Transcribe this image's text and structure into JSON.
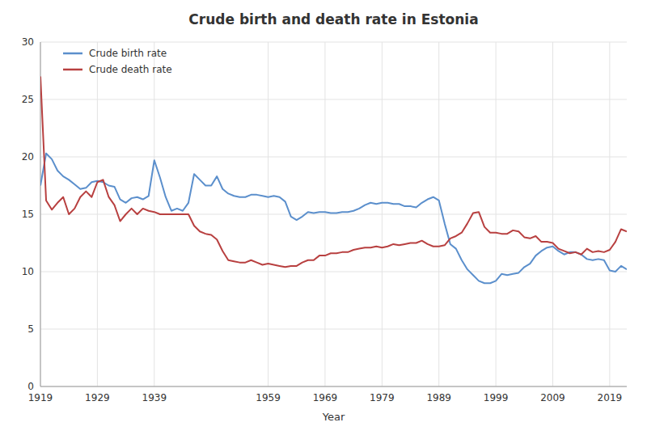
{
  "chart_data": {
    "type": "line",
    "title": "Crude birth and death rate in Estonia",
    "xlabel": "Year",
    "x": [
      1919,
      1920,
      1921,
      1922,
      1923,
      1924,
      1925,
      1926,
      1927,
      1928,
      1929,
      1930,
      1931,
      1932,
      1933,
      1934,
      1935,
      1936,
      1937,
      1938,
      1939,
      1940,
      1941,
      1942,
      1943,
      1944,
      1945,
      1946,
      1947,
      1948,
      1949,
      1950,
      1951,
      1952,
      1953,
      1954,
      1955,
      1956,
      1957,
      1958,
      1959,
      1960,
      1961,
      1962,
      1963,
      1964,
      1965,
      1966,
      1967,
      1968,
      1969,
      1970,
      1971,
      1972,
      1973,
      1974,
      1975,
      1976,
      1977,
      1978,
      1979,
      1980,
      1981,
      1982,
      1983,
      1984,
      1985,
      1986,
      1987,
      1988,
      1989,
      1990,
      1991,
      1992,
      1993,
      1994,
      1995,
      1996,
      1997,
      1998,
      1999,
      2000,
      2001,
      2002,
      2003,
      2004,
      2005,
      2006,
      2007,
      2008,
      2009,
      2010,
      2011,
      2012,
      2013,
      2014,
      2015,
      2016,
      2017,
      2018,
      2019,
      2020,
      2021,
      2022
    ],
    "series": [
      {
        "name": "Crude birth rate",
        "color": "#5b8fcc",
        "values": [
          17.5,
          20.3,
          19.8,
          18.8,
          18.3,
          18.0,
          17.6,
          17.2,
          17.3,
          17.8,
          17.9,
          17.8,
          17.5,
          17.4,
          16.3,
          16.0,
          16.4,
          16.5,
          16.3,
          16.6,
          19.7,
          18.2,
          16.5,
          15.3,
          15.5,
          15.3,
          16.0,
          18.5,
          18.0,
          17.5,
          17.5,
          18.3,
          17.2,
          16.8,
          16.6,
          16.5,
          16.5,
          16.7,
          16.7,
          16.6,
          16.5,
          16.6,
          16.5,
          16.1,
          14.8,
          14.5,
          14.8,
          15.2,
          15.1,
          15.2,
          15.2,
          15.1,
          15.1,
          15.2,
          15.2,
          15.3,
          15.5,
          15.8,
          16.0,
          15.9,
          16.0,
          16.0,
          15.9,
          15.9,
          15.7,
          15.7,
          15.6,
          16.0,
          16.3,
          16.5,
          16.2,
          14.2,
          12.4,
          12.0,
          11.0,
          10.2,
          9.7,
          9.2,
          9.0,
          9.0,
          9.2,
          9.8,
          9.7,
          9.8,
          9.9,
          10.4,
          10.7,
          11.4,
          11.8,
          12.1,
          12.2,
          11.8,
          11.5,
          11.7,
          11.7,
          11.5,
          11.1,
          11.0,
          11.1,
          11.0,
          10.1,
          10.0,
          10.5,
          10.2
        ]
      },
      {
        "name": "Crude death rate",
        "color": "#b84040",
        "values": [
          27.0,
          16.2,
          15.4,
          16.0,
          16.5,
          15.0,
          15.5,
          16.5,
          17.0,
          16.5,
          17.8,
          18.0,
          16.5,
          15.8,
          14.4,
          15.0,
          15.5,
          15.0,
          15.5,
          15.3,
          15.2,
          15.0,
          15.0,
          15.0,
          15.0,
          15.0,
          15.0,
          14.0,
          13.5,
          13.3,
          13.2,
          12.8,
          11.8,
          11.0,
          10.9,
          10.8,
          10.8,
          11.0,
          10.8,
          10.6,
          10.7,
          10.6,
          10.5,
          10.4,
          10.5,
          10.5,
          10.8,
          11.0,
          11.0,
          11.4,
          11.4,
          11.6,
          11.6,
          11.7,
          11.7,
          11.9,
          12.0,
          12.1,
          12.1,
          12.2,
          12.1,
          12.2,
          12.4,
          12.3,
          12.4,
          12.5,
          12.5,
          12.7,
          12.4,
          12.2,
          12.2,
          12.3,
          12.9,
          13.1,
          13.4,
          14.2,
          15.1,
          15.2,
          13.9,
          13.4,
          13.4,
          13.3,
          13.3,
          13.6,
          13.5,
          13.0,
          12.9,
          13.1,
          12.6,
          12.6,
          12.5,
          12.0,
          11.8,
          11.6,
          11.7,
          11.5,
          12.0,
          11.7,
          11.8,
          11.7,
          11.9,
          12.6,
          13.7,
          13.5
        ]
      }
    ],
    "xlim": [
      1919,
      2022
    ],
    "ylim": [
      0,
      30
    ],
    "xticks": [
      1919,
      1929,
      1939,
      1959,
      1969,
      1979,
      1989,
      1999,
      2009,
      2019
    ],
    "yticks": [
      0,
      5,
      10,
      15,
      20,
      25,
      30
    ],
    "grid": true,
    "legend": "upper left"
  }
}
